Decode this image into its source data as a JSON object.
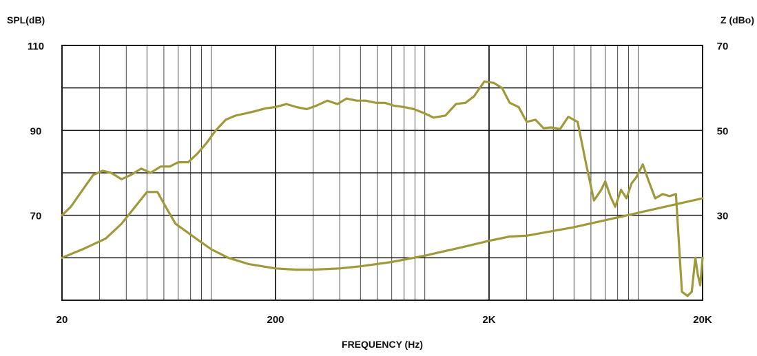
{
  "chart_data": {
    "type": "line",
    "xlabel": "FREQUENCY (Hz)",
    "ylabel_left": "SPL(dB)",
    "ylabel_right": "Z (dBo)",
    "x_scale": "log",
    "xlim": [
      20,
      20000
    ],
    "x_ticks": [
      {
        "value": 20,
        "label": "20"
      },
      {
        "value": 200,
        "label": "200"
      },
      {
        "value": 2000,
        "label": "2K"
      },
      {
        "value": 20000,
        "label": "20K"
      }
    ],
    "ylim_left": [
      50,
      110
    ],
    "y_ticks_left": [
      {
        "value": 110,
        "label": "110"
      },
      {
        "value": 90,
        "label": "90"
      },
      {
        "value": 70,
        "label": "70"
      }
    ],
    "ylim_right": [
      10,
      70
    ],
    "y_ticks_right": [
      {
        "value": 70,
        "label": "70"
      },
      {
        "value": 50,
        "label": "50"
      },
      {
        "value": 30,
        "label": "30"
      }
    ],
    "grid": true,
    "line_color": "#9e9a3c",
    "series": [
      {
        "axis": "left",
        "x": [
          20,
          22,
          25,
          28,
          31,
          34,
          38,
          42,
          47,
          52,
          58,
          64,
          70,
          78,
          86,
          95,
          105,
          117,
          130,
          145,
          160,
          180,
          200,
          225,
          250,
          280,
          310,
          350,
          390,
          430,
          480,
          530,
          590,
          650,
          720,
          800,
          890,
          1000,
          1100,
          1250,
          1400,
          1550,
          1700,
          1900,
          2100,
          2300,
          2500,
          2750,
          3000,
          3300,
          3600,
          3900,
          4300,
          4700,
          5200,
          5700,
          6200,
          6700,
          7000,
          7400,
          7800,
          8300,
          8800,
          9300,
          9800,
          10500,
          11200,
          12000,
          13000,
          14000,
          15000,
          16000,
          17000,
          17800,
          18500,
          19000,
          19500,
          20000
        ],
        "y": [
          70,
          72,
          76,
          79.5,
          80.5,
          80,
          78.5,
          79.5,
          81,
          80,
          81.5,
          81.5,
          82.5,
          82.5,
          84.5,
          87,
          90,
          92.5,
          93.5,
          94,
          94.5,
          95.2,
          95.5,
          96.2,
          95.5,
          95,
          95.8,
          97,
          96.2,
          97.5,
          97,
          97,
          96.5,
          96.5,
          95.8,
          95.5,
          95,
          94,
          93,
          93.5,
          96.2,
          96.5,
          98,
          101.5,
          101.2,
          100,
          96.5,
          95.5,
          92,
          92.5,
          90.5,
          90.7,
          90.3,
          93.2,
          92,
          82,
          73.5,
          76,
          78,
          74.5,
          72,
          76,
          74,
          77.5,
          79,
          82,
          78,
          74,
          75,
          74.5,
          75,
          52,
          51,
          52,
          60,
          56,
          53.5,
          60
        ]
      },
      {
        "axis": "right",
        "x": [
          20,
          25,
          32,
          38,
          44,
          50,
          56,
          62,
          68,
          75,
          85,
          100,
          120,
          150,
          200,
          250,
          300,
          400,
          500,
          700,
          1000,
          1500,
          2000,
          2500,
          3000,
          5000,
          8000,
          12000,
          20000
        ],
        "y": [
          20,
          22,
          24.5,
          28,
          32,
          35.5,
          35.5,
          31.5,
          28,
          26.5,
          24.5,
          22,
          20,
          18.5,
          17.5,
          17.2,
          17.2,
          17.5,
          18,
          19,
          20.5,
          22.5,
          24,
          25,
          25.2,
          27.2,
          29.5,
          31.5,
          34
        ]
      }
    ]
  }
}
